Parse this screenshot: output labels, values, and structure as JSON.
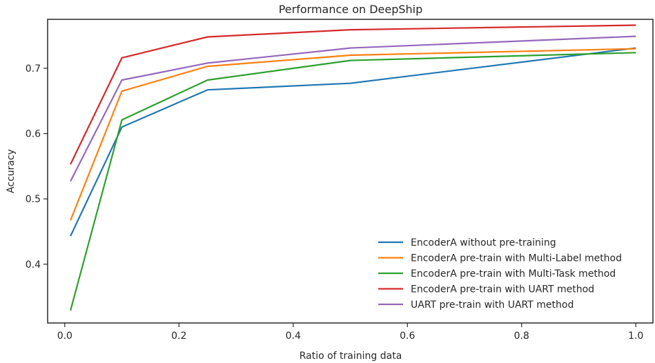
{
  "chart_data": {
    "type": "line",
    "title": "Performance on DeepShip",
    "xlabel": "Ratio of training data",
    "ylabel": "Accuracy",
    "x": [
      0.01,
      0.1,
      0.25,
      0.5,
      1.0
    ],
    "xlim": [
      -0.03,
      1.03
    ],
    "ylim": [
      0.31,
      0.775
    ],
    "xticks": [
      "0.0",
      "0.2",
      "0.4",
      "0.6",
      "0.8",
      "1.0"
    ],
    "yticks": [
      "0.4",
      "0.5",
      "0.6",
      "0.7"
    ],
    "grid": false,
    "legend_position": "lower-right",
    "series": [
      {
        "name": "EncoderA without pre-training",
        "color": "#1f77b4",
        "values": [
          0.443,
          0.61,
          0.667,
          0.677,
          0.731
        ]
      },
      {
        "name": "EncoderA pre-train with Multi-Label method",
        "color": "#ff7f0e",
        "values": [
          0.467,
          0.665,
          0.703,
          0.72,
          0.73
        ]
      },
      {
        "name": "EncoderA pre-train with Multi-Task method",
        "color": "#2ca02c",
        "values": [
          0.329,
          0.621,
          0.682,
          0.712,
          0.724
        ]
      },
      {
        "name": "EncoderA pre-train with UART method",
        "color": "#d62728",
        "values": [
          0.553,
          0.716,
          0.748,
          0.759,
          0.766
        ]
      },
      {
        "name": "UART pre-train with UART method",
        "color": "#9467bd",
        "values": [
          0.527,
          0.682,
          0.708,
          0.731,
          0.749
        ]
      }
    ]
  }
}
